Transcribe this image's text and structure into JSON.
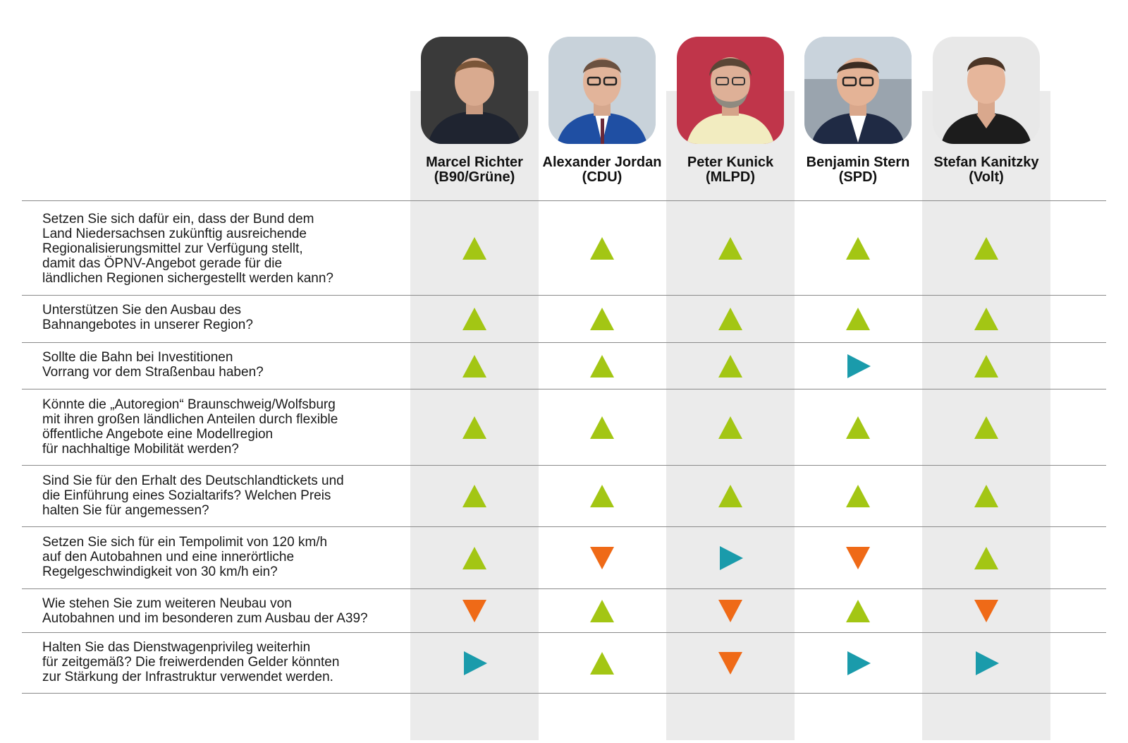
{
  "colors": {
    "yes": "#a3c614",
    "no": "#ef6a17",
    "neutral": "#1a9bab",
    "column_background": "#ebebeb",
    "divider": "#8a8a8a"
  },
  "answer_icons": {
    "yes": "triangle-up-icon",
    "no": "triangle-down-icon",
    "neutral": "triangle-right-icon"
  },
  "candidates": [
    {
      "name": "Marcel Richter",
      "party": "(B90/Grüne)",
      "photo_bg": "#3a3a3a"
    },
    {
      "name": "Alexander Jordan",
      "party": "(CDU)",
      "photo_bg": "#d7dde3"
    },
    {
      "name": "Peter Kunick",
      "party": "(MLPD)",
      "photo_bg": "#c0354a"
    },
    {
      "name": "Benjamin Stern",
      "party": "(SPD)",
      "photo_bg": "#b9c4cf"
    },
    {
      "name": "Stefan Kanitzky",
      "party": "(Volt)",
      "photo_bg": "#e8e8e8"
    }
  ],
  "questions": [
    {
      "lines": [
        "Setzen Sie sich dafür ein, dass der Bund dem",
        "Land Niedersachsen zukünftig ausreichende",
        "Regionalisierungsmittel zur Verfügung stellt,",
        "damit das ÖPNV-Angebot gerade für die",
        "ländlichen Regionen sichergestellt werden kann?"
      ],
      "answers": [
        "yes",
        "yes",
        "yes",
        "yes",
        "yes"
      ]
    },
    {
      "lines": [
        "Unterstützen Sie den Ausbau des",
        "Bahnangebotes in unserer Region?"
      ],
      "answers": [
        "yes",
        "yes",
        "yes",
        "yes",
        "yes"
      ]
    },
    {
      "lines": [
        "Sollte die Bahn bei Investitionen",
        "Vorrang vor dem Straßenbau haben?"
      ],
      "answers": [
        "yes",
        "yes",
        "yes",
        "neutral",
        "yes"
      ]
    },
    {
      "lines": [
        "Könnte die „Autoregion“ Braunschweig/Wolfsburg",
        "mit ihren großen ländlichen Anteilen durch flexible",
        "öffentliche Angebote eine Modellregion",
        "für nachhaltige Mobilität werden?"
      ],
      "answers": [
        "yes",
        "yes",
        "yes",
        "yes",
        "yes"
      ]
    },
    {
      "lines": [
        "Sind Sie für den Erhalt des Deutschlandtickets und",
        "die Einführung eines Sozialtarifs? Welchen Preis",
        "halten Sie für angemessen?"
      ],
      "answers": [
        "yes",
        "yes",
        "yes",
        "yes",
        "yes"
      ]
    },
    {
      "lines": [
        "Setzen Sie sich für ein Tempolimit von 120 km/h",
        "auf den Autobahnen und eine innerörtliche",
        "Regelgeschwindigkeit von 30 km/h ein?"
      ],
      "answers": [
        "yes",
        "no",
        "neutral",
        "no",
        "yes"
      ]
    },
    {
      "lines": [
        "Wie stehen Sie zum weiteren Neubau von",
        "Autobahnen und im besonderen zum Ausbau der A39?"
      ],
      "answers": [
        "no",
        "yes",
        "no",
        "yes",
        "no"
      ]
    },
    {
      "lines": [
        "Halten Sie das Dienstwagenprivileg weiterhin",
        "für zeitgemäß? Die freiwerdenden Gelder könnten",
        "zur Stärkung der Infrastruktur verwendet werden."
      ],
      "answers": [
        "neutral",
        "yes",
        "no",
        "neutral",
        "neutral"
      ]
    }
  ]
}
